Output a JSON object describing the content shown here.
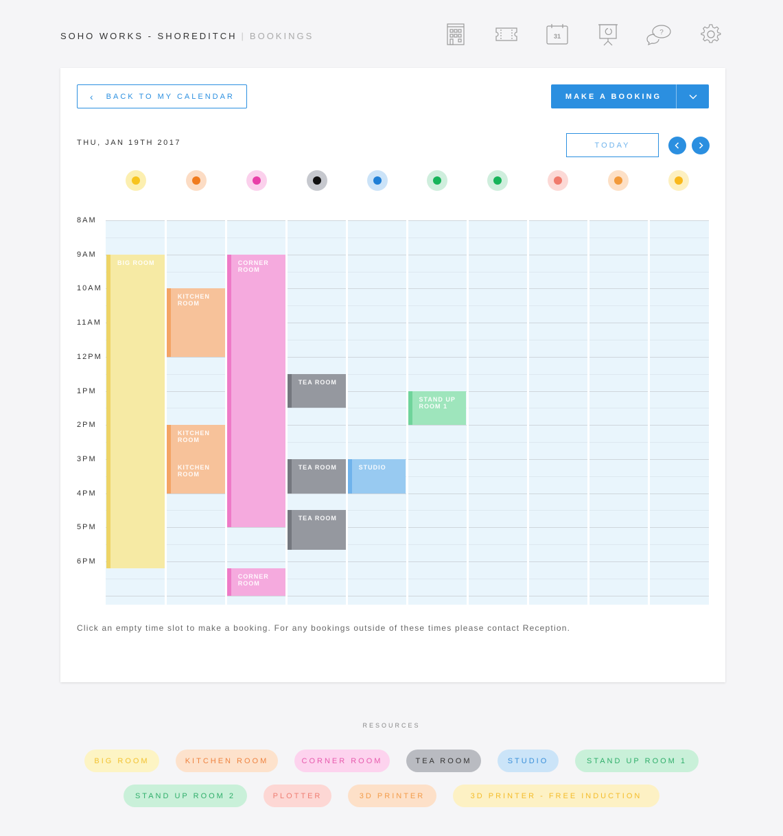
{
  "header": {
    "app_name": "SOHO WORKS - SHOREDITCH",
    "separator": "|",
    "section": "BOOKINGS",
    "nav_icons": [
      "building-icon",
      "ticket-icon",
      "calendar-icon",
      "presentation-icon",
      "help-chat-icon",
      "settings-gear-icon"
    ],
    "calendar_icon_day": "31",
    "help_icon_mark": "?"
  },
  "toolbar": {
    "back_label": "BACK TO MY CALENDAR",
    "make_booking_label": "MAKE A BOOKING",
    "today_label": "TODAY"
  },
  "calendar": {
    "date_label": "THU, JAN 19TH 2017",
    "time_labels": [
      "8AM",
      "9AM",
      "10AM",
      "11AM",
      "12PM",
      "1PM",
      "2PM",
      "3PM",
      "4PM",
      "5PM",
      "6PM"
    ],
    "resource_dots": [
      {
        "name": "Big Room",
        "outer": "#fcefb0",
        "inner": "#f7c41f"
      },
      {
        "name": "Kitchen Room",
        "outer": "#fcdcc4",
        "inner": "#f07b1e"
      },
      {
        "name": "Corner Room",
        "outer": "#fbd0ec",
        "inner": "#e83fa8"
      },
      {
        "name": "Tea Room",
        "outer": "#c6c8ce",
        "inner": "#111111"
      },
      {
        "name": "Studio",
        "outer": "#cbe3f8",
        "inner": "#1f7fd6"
      },
      {
        "name": "Stand Up Room 1",
        "outer": "#cfeedd",
        "inner": "#17b45a"
      },
      {
        "name": "Stand Up Room 2",
        "outer": "#cfeedd",
        "inner": "#17b45a"
      },
      {
        "name": "Plotter",
        "outer": "#fcd9d6",
        "inner": "#f07a6c"
      },
      {
        "name": "3D Printer",
        "outer": "#fde0c6",
        "inner": "#f29a3a"
      },
      {
        "name": "3D Printer - Free Induction",
        "outer": "#fdf0c0",
        "inner": "#f9b81b"
      }
    ],
    "events": [
      {
        "label": "BIG ROOM",
        "col": 0,
        "start": 9,
        "end": 18.2,
        "bg": "#f6eaa4",
        "bar": "#eed466"
      },
      {
        "label": "KITCHEN ROOM",
        "col": 1,
        "start": 10,
        "end": 12,
        "bg": "#f7c29a",
        "bar": "#f3a465"
      },
      {
        "label": "KITCHEN ROOM",
        "col": 1,
        "start": 14,
        "end": 15,
        "bg": "#f7c29a",
        "bar": "#f3a465"
      },
      {
        "label": "KITCHEN ROOM",
        "col": 1,
        "start": 15,
        "end": 16,
        "bg": "#f7c29a",
        "bar": "#f3a465"
      },
      {
        "label": "CORNER ROOM",
        "col": 2,
        "start": 9,
        "end": 17,
        "bg": "#f5aade",
        "bar": "#ee7ac7"
      },
      {
        "label": "CORNER ROOM",
        "col": 2,
        "start": 18.2,
        "end": 19,
        "bg": "#f5aade",
        "bar": "#ee7ac7"
      },
      {
        "label": "TEA ROOM",
        "col": 3,
        "start": 12.5,
        "end": 13.5,
        "bg": "#95989f",
        "bar": "#74777e"
      },
      {
        "label": "TEA ROOM",
        "col": 3,
        "start": 15,
        "end": 16,
        "bg": "#95989f",
        "bar": "#74777e"
      },
      {
        "label": "TEA ROOM",
        "col": 3,
        "start": 16.5,
        "end": 17.65,
        "bg": "#95989f",
        "bar": "#74777e"
      },
      {
        "label": "STUDIO",
        "col": 4,
        "start": 15,
        "end": 16,
        "bg": "#98caf1",
        "bar": "#6fb3ec"
      },
      {
        "label": "STAND UP ROOM 1",
        "col": 5,
        "start": 13,
        "end": 14,
        "bg": "#9ee5bc",
        "bar": "#6fd49b"
      }
    ],
    "hint": "Click an empty time slot to make a booking. For any bookings outside of these times please contact Reception."
  },
  "resources": {
    "title": "RESOURCES",
    "pills": [
      {
        "label": "BIG ROOM",
        "bg": "#fdf4c4",
        "fg": "#f2c230"
      },
      {
        "label": "KITCHEN ROOM",
        "bg": "#fde2cc",
        "fg": "#ee8340"
      },
      {
        "label": "CORNER ROOM",
        "bg": "#fdd3ee",
        "fg": "#e75aad"
      },
      {
        "label": "TEA ROOM",
        "bg": "#b9bbc1",
        "fg": "#333333"
      },
      {
        "label": "STUDIO",
        "bg": "#cbe4f8",
        "fg": "#3a8fd9"
      },
      {
        "label": "STAND UP ROOM 1",
        "bg": "#c9f0d9",
        "fg": "#2fae6a"
      },
      {
        "label": "STAND UP ROOM 2",
        "bg": "#c9f0d9",
        "fg": "#2fae6a"
      },
      {
        "label": "PLOTTER",
        "bg": "#fdd7d4",
        "fg": "#ef7e73"
      },
      {
        "label": "3D PRINTER",
        "bg": "#fde0c8",
        "fg": "#f39c4a"
      },
      {
        "label": "3D PRINTER - FREE INDUCTION",
        "bg": "#fdf1c4",
        "fg": "#f4bc2a"
      }
    ]
  }
}
